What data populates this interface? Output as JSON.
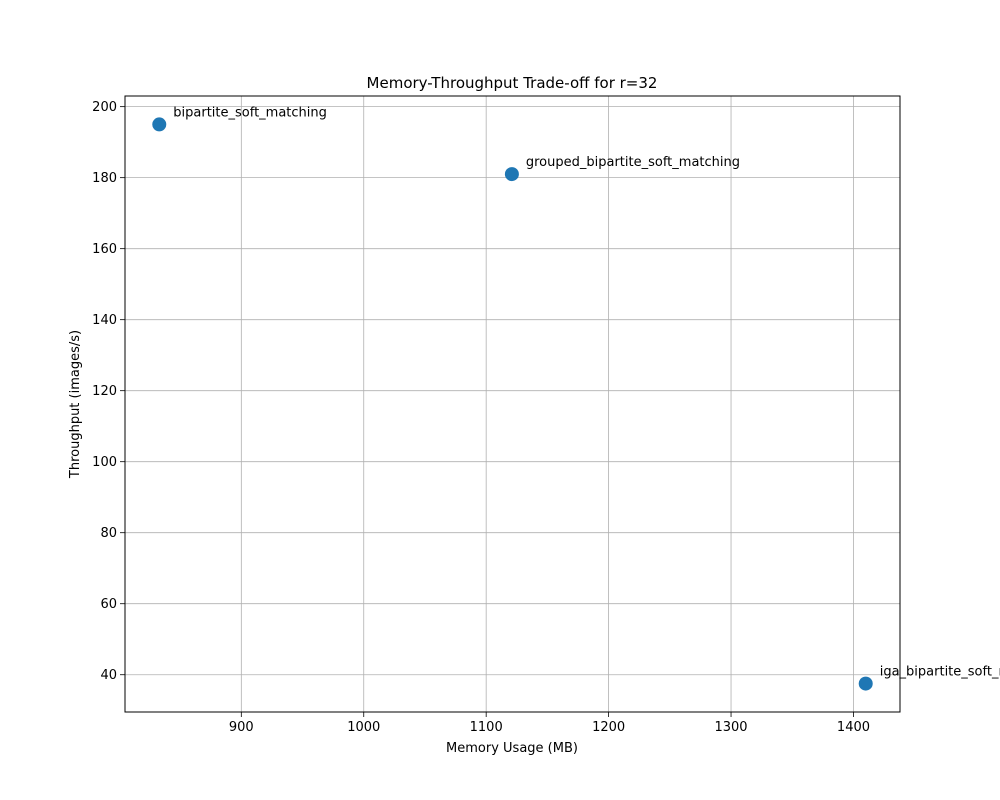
{
  "chart_data": {
    "type": "scatter",
    "title": "Memory-Throughput Trade-off for r=32",
    "xlabel": "Memory Usage (MB)",
    "ylabel": "Throughput (images/s)",
    "xlim": [
      805,
      1438
    ],
    "ylim": [
      29.5,
      203
    ],
    "xticks": [
      900,
      1000,
      1100,
      1200,
      1300,
      1400
    ],
    "yticks": [
      40,
      60,
      80,
      100,
      120,
      140,
      160,
      180,
      200
    ],
    "grid": true,
    "marker_color": "#1f77b4",
    "points": [
      {
        "x": 833,
        "y": 195,
        "label": "bipartite_soft_matching"
      },
      {
        "x": 1121,
        "y": 181,
        "label": "grouped_bipartite_soft_matching"
      },
      {
        "x": 1410,
        "y": 37.5,
        "label": "iga_bipartite_soft_matching"
      }
    ]
  }
}
